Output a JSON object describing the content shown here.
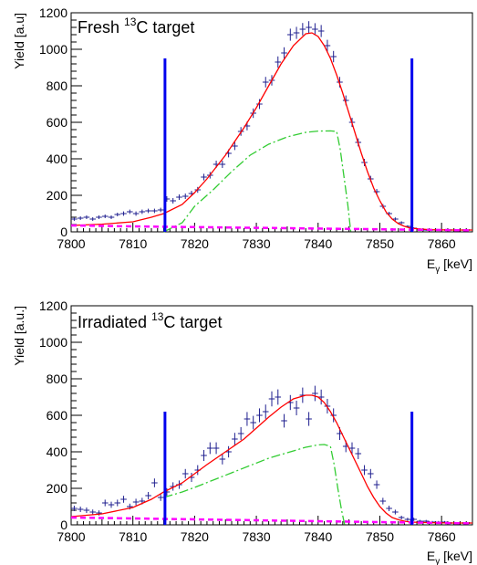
{
  "chart_data": [
    {
      "type": "line",
      "title": "Fresh",
      "title_sup": "13",
      "title_tail": "C target",
      "xlabel_main": "E",
      "xlabel_sub": "γ",
      "xlabel_unit": " [keV]",
      "ylabel": "Yield [a.u]",
      "xlim": [
        7800,
        7865
      ],
      "ylim": [
        0,
        1200
      ],
      "xticks": [
        7800,
        7810,
        7820,
        7830,
        7840,
        7850,
        7860
      ],
      "yticks": [
        0,
        200,
        400,
        600,
        800,
        1000,
        1200
      ],
      "colors": {
        "data": "#1f1f8f",
        "fit": "#ff0000",
        "peak": "#33cc33",
        "background": "#ff00ff",
        "limits": "#0000ee"
      },
      "limits": [
        {
          "x": 7815.2,
          "y": 950
        },
        {
          "x": 7855.2,
          "y": 950
        }
      ],
      "series": [
        {
          "style": "points",
          "x": [
            7800.5,
            7801.5,
            7802.5,
            7803.5,
            7804.5,
            7805.5,
            7806.5,
            7807.5,
            7808.5,
            7809.5,
            7810.5,
            7811.5,
            7812.5,
            7813.5,
            7814.5,
            7815.5,
            7816.5,
            7817.5,
            7818.5,
            7819.5,
            7820.5,
            7821.5,
            7822.5,
            7823.5,
            7824.5,
            7825.5,
            7826.5,
            7827.5,
            7828.5,
            7829.5,
            7830.5,
            7831.5,
            7832.5,
            7833.5,
            7834.5,
            7835.5,
            7836.5,
            7837.5,
            7838.5,
            7839.5,
            7840.5,
            7841.5,
            7842.5,
            7843.5,
            7844.5,
            7845.5,
            7846.5,
            7847.5,
            7848.5,
            7849.5,
            7850.5,
            7851.5,
            7852.5,
            7853.5,
            7854.5,
            7855.5,
            7856.5,
            7857.5,
            7858.5,
            7859.5,
            7860.5,
            7861.5,
            7862.5,
            7863.5,
            7864.5
          ],
          "y": [
            70,
            75,
            80,
            70,
            80,
            85,
            80,
            95,
            100,
            110,
            100,
            110,
            115,
            115,
            120,
            180,
            170,
            190,
            195,
            210,
            230,
            300,
            310,
            370,
            370,
            430,
            470,
            550,
            580,
            650,
            700,
            820,
            830,
            930,
            980,
            1080,
            1090,
            1110,
            1120,
            1110,
            1100,
            1020,
            960,
            820,
            720,
            600,
            490,
            380,
            290,
            220,
            140,
            100,
            70,
            50,
            30,
            20,
            15,
            10,
            10,
            10,
            10,
            10,
            10,
            10,
            10
          ],
          "yerr": [
            10,
            10,
            10,
            10,
            10,
            10,
            10,
            10,
            12,
            12,
            12,
            12,
            12,
            12,
            12,
            15,
            15,
            15,
            15,
            15,
            16,
            18,
            18,
            20,
            20,
            22,
            22,
            24,
            24,
            26,
            27,
            29,
            29,
            31,
            31,
            33,
            33,
            34,
            34,
            33,
            33,
            32,
            31,
            29,
            27,
            25,
            22,
            20,
            17,
            15,
            12,
            10,
            9,
            8,
            6,
            5,
            4,
            4,
            4,
            4,
            4,
            4,
            4,
            4,
            4
          ]
        },
        {
          "style": "fit",
          "x": [
            7800,
            7805,
            7810,
            7813,
            7815,
            7818,
            7820,
            7822,
            7825,
            7828,
            7830,
            7832,
            7834,
            7836,
            7838,
            7839,
            7840,
            7841,
            7842,
            7843,
            7844,
            7845,
            7846,
            7847,
            7848,
            7849,
            7850,
            7851,
            7852,
            7853,
            7854,
            7855,
            7858,
            7862,
            7865
          ],
          "y": [
            35,
            42,
            55,
            80,
            100,
            150,
            215,
            290,
            420,
            570,
            680,
            800,
            920,
            1020,
            1085,
            1090,
            1070,
            1020,
            950,
            860,
            760,
            650,
            540,
            430,
            330,
            240,
            170,
            110,
            70,
            45,
            30,
            20,
            12,
            10,
            10
          ]
        },
        {
          "style": "peak",
          "x": [
            7815,
            7818,
            7820,
            7823,
            7826,
            7829,
            7832,
            7835,
            7838,
            7840,
            7842,
            7843,
            7843.6,
            7844.2,
            7844.8,
            7845.3
          ],
          "y": [
            0,
            50,
            140,
            230,
            330,
            420,
            480,
            520,
            545,
            552,
            553,
            550,
            450,
            300,
            150,
            0
          ]
        },
        {
          "style": "background",
          "x": [
            7800,
            7810,
            7820,
            7830,
            7840,
            7850,
            7865
          ],
          "y": [
            35,
            30,
            26,
            22,
            18,
            14,
            8
          ]
        }
      ]
    },
    {
      "type": "line",
      "title": "Irradiated",
      "title_sup": "13",
      "title_tail": "C target",
      "xlabel_main": "E",
      "xlabel_sub": "γ",
      "xlabel_unit": " [keV]",
      "ylabel": "Yield [a.u.]",
      "xlim": [
        7800,
        7865
      ],
      "ylim": [
        0,
        1200
      ],
      "xticks": [
        7800,
        7810,
        7820,
        7830,
        7840,
        7850,
        7860
      ],
      "yticks": [
        0,
        200,
        400,
        600,
        800,
        1000,
        1200
      ],
      "colors": {
        "data": "#1f1f8f",
        "fit": "#ff0000",
        "peak": "#33cc33",
        "background": "#ff00ff",
        "limits": "#0000ee"
      },
      "limits": [
        {
          "x": 7815.2,
          "y": 620
        },
        {
          "x": 7855.2,
          "y": 620
        }
      ],
      "series": [
        {
          "style": "points",
          "x": [
            7800.5,
            7801.5,
            7802.5,
            7803.5,
            7804.5,
            7805.5,
            7806.5,
            7807.5,
            7808.5,
            7809.5,
            7810.5,
            7811.5,
            7812.5,
            7813.5,
            7814.5,
            7815.5,
            7816.5,
            7817.5,
            7818.5,
            7819.5,
            7820.5,
            7821.5,
            7822.5,
            7823.5,
            7824.5,
            7825.5,
            7826.5,
            7827.5,
            7828.5,
            7829.5,
            7830.5,
            7831.5,
            7832.5,
            7833.5,
            7834.5,
            7835.5,
            7836.5,
            7837.5,
            7838.5,
            7839.5,
            7840.5,
            7841.5,
            7842.5,
            7843.5,
            7844.5,
            7845.5,
            7846.5,
            7847.5,
            7848.5,
            7849.5,
            7850.5,
            7851.5,
            7852.5,
            7853.5,
            7854.5,
            7855.5,
            7856.5,
            7857.5,
            7858.5,
            7859.5,
            7860.5,
            7861.5,
            7862.5,
            7863.5,
            7864.5
          ],
          "y": [
            90,
            85,
            80,
            70,
            65,
            120,
            110,
            120,
            140,
            100,
            125,
            130,
            160,
            230,
            150,
            180,
            210,
            220,
            280,
            260,
            300,
            380,
            420,
            420,
            360,
            400,
            470,
            500,
            580,
            560,
            600,
            620,
            690,
            700,
            570,
            670,
            640,
            710,
            580,
            720,
            700,
            650,
            600,
            500,
            430,
            420,
            390,
            300,
            280,
            220,
            130,
            90,
            70,
            40,
            30,
            30,
            20,
            20,
            15,
            15,
            15,
            10,
            10,
            10,
            10
          ],
          "yerr": [
            15,
            15,
            15,
            14,
            14,
            18,
            17,
            18,
            19,
            16,
            18,
            18,
            20,
            24,
            19,
            21,
            23,
            23,
            26,
            25,
            27,
            30,
            32,
            32,
            29,
            31,
            34,
            35,
            38,
            37,
            38,
            39,
            41,
            42,
            37,
            41,
            40,
            42,
            38,
            42,
            41,
            40,
            38,
            35,
            32,
            32,
            30,
            27,
            26,
            23,
            18,
            15,
            13,
            10,
            9,
            9,
            7,
            7,
            6,
            6,
            6,
            5,
            5,
            5,
            5
          ]
        },
        {
          "style": "fit",
          "x": [
            7800,
            7805,
            7810,
            7813,
            7815,
            7818,
            7820,
            7822,
            7825,
            7828,
            7830,
            7832,
            7834,
            7836,
            7838,
            7839,
            7840,
            7841,
            7842,
            7843,
            7844,
            7845,
            7846,
            7847,
            7848,
            7849,
            7850,
            7851,
            7852,
            7853,
            7854,
            7855,
            7858,
            7862,
            7865
          ],
          "y": [
            45,
            60,
            95,
            140,
            180,
            230,
            280,
            330,
            400,
            470,
            530,
            590,
            645,
            690,
            710,
            710,
            700,
            670,
            620,
            560,
            490,
            420,
            350,
            280,
            210,
            150,
            100,
            65,
            40,
            28,
            20,
            15,
            12,
            10,
            10
          ]
        },
        {
          "style": "peak",
          "x": [
            7815,
            7818,
            7820,
            7823,
            7826,
            7829,
            7832,
            7835,
            7838,
            7840,
            7841,
            7842,
            7842.6,
            7843.2,
            7843.8,
            7844.3
          ],
          "y": [
            150,
            180,
            205,
            245,
            285,
            325,
            365,
            395,
            425,
            438,
            440,
            430,
            330,
            200,
            80,
            0
          ]
        },
        {
          "style": "background",
          "x": [
            7800,
            7810,
            7820,
            7830,
            7840,
            7850,
            7865
          ],
          "y": [
            40,
            35,
            30,
            25,
            20,
            15,
            8
          ]
        }
      ]
    }
  ]
}
